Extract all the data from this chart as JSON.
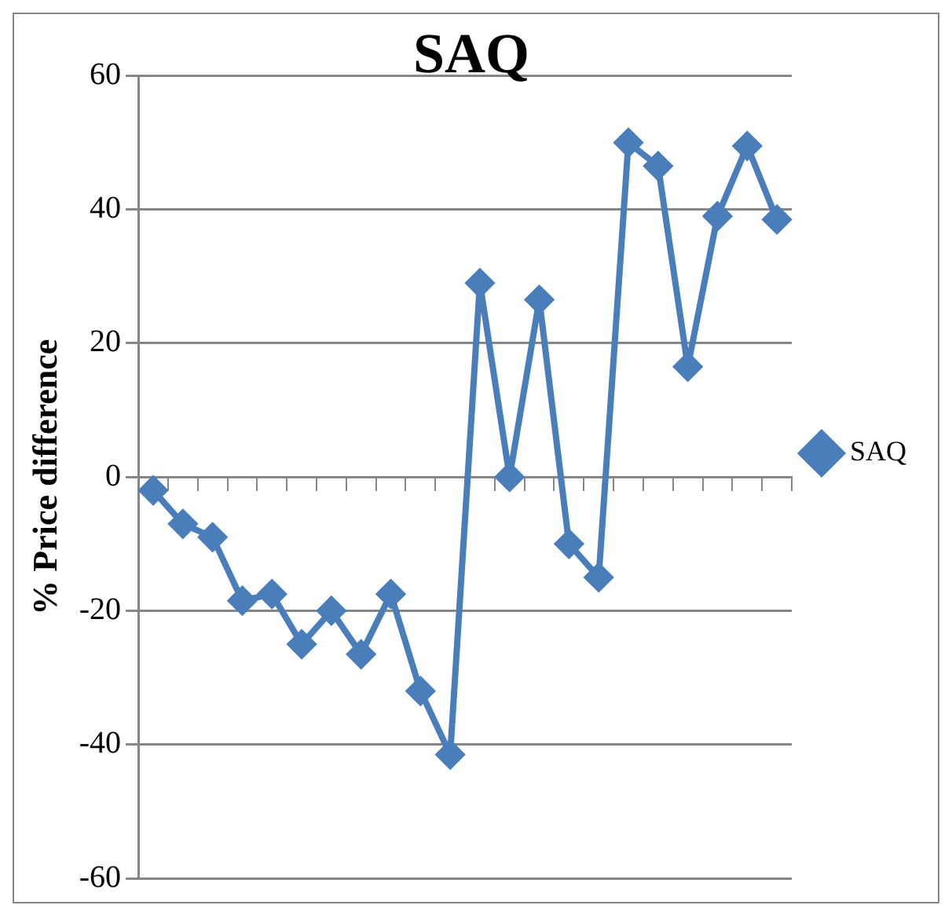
{
  "chart_data": {
    "type": "line",
    "title": "SAQ",
    "ylabel": "% Price difference",
    "categories": [
      null,
      null,
      null,
      null,
      null,
      null,
      null,
      null,
      null,
      null,
      null,
      null,
      null,
      null,
      null,
      null,
      null,
      null,
      null,
      null,
      null,
      null
    ],
    "series": [
      {
        "name": "SAQ",
        "color": "#4a7ebb",
        "values": [
          -2,
          -7,
          -9,
          -18.5,
          -17.5,
          -25,
          -20,
          -26.5,
          -17.5,
          -32,
          -41.5,
          29,
          0,
          26.5,
          -10,
          -15,
          50,
          46.5,
          16.5,
          39,
          49.5,
          38.5
        ]
      }
    ],
    "ylim": [
      -60,
      60
    ],
    "yticks": [
      -60,
      -40,
      -20,
      0,
      20,
      40,
      60
    ],
    "grid": "y",
    "legend": "right",
    "marker": "diamond",
    "line_style": "solid"
  }
}
